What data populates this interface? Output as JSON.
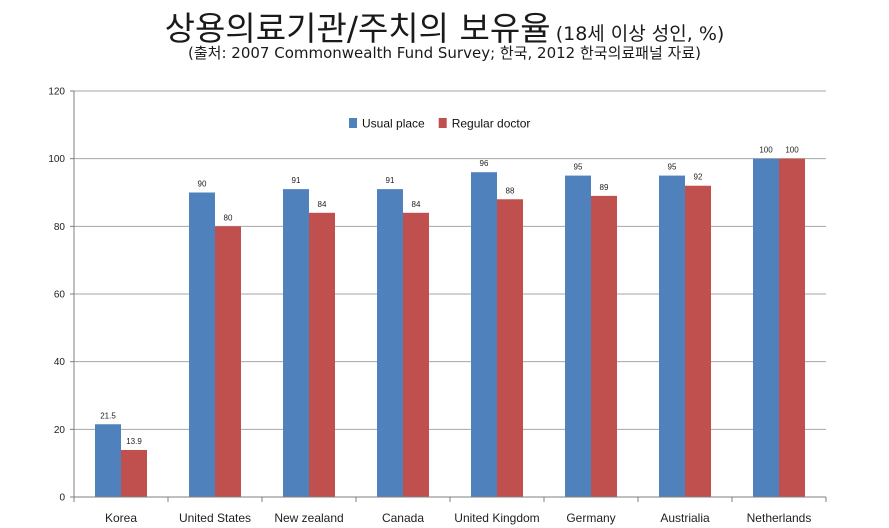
{
  "chart_data": {
    "type": "bar",
    "title": "상용의료기관/주치의 보유율",
    "title_note": "(18세 이상 성인, %)",
    "subtitle": "(출처: 2007 Commonwealth Fund Survey; 한국, 2012 한국의료패널 자료)",
    "categories": [
      "Korea",
      "United States",
      "New zealand",
      "Canada",
      "United Kingdom",
      "Germany",
      "Austrialia",
      "Netherlands"
    ],
    "series": [
      {
        "name": "Usual place",
        "color": "#4f81bd",
        "values": [
          21.5,
          90,
          91,
          91,
          96,
          95,
          95,
          100
        ]
      },
      {
        "name": "Regular doctor",
        "color": "#c0504d",
        "values": [
          13.9,
          80,
          84,
          84,
          88,
          89,
          92,
          100
        ]
      }
    ],
    "ylim": [
      0,
      120
    ],
    "yticks": [
      0,
      20,
      40,
      60,
      80,
      100,
      120
    ],
    "grid": true,
    "legend_position": "top-center",
    "xlabel": "",
    "ylabel": ""
  }
}
